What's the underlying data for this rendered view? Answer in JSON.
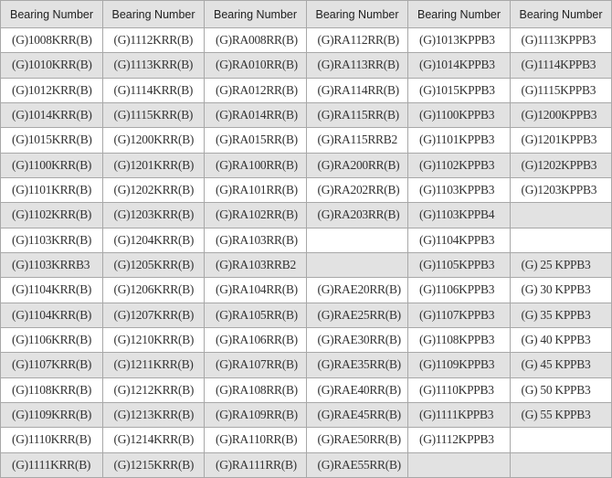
{
  "headers": [
    "Bearing Number",
    "Bearing Number",
    "Bearing Number",
    "Bearing Number",
    "Bearing Number",
    "Bearing Number"
  ],
  "rows": [
    [
      "(G)1008KRR(B)",
      "(G)1112KRR(B)",
      "(G)RA008RR(B)",
      "(G)RA112RR(B)",
      "(G)1013KPPB3",
      "(G)1113KPPB3"
    ],
    [
      "(G)1010KRR(B)",
      "(G)1113KRR(B)",
      "(G)RA010RR(B)",
      "(G)RA113RR(B)",
      "(G)1014KPPB3",
      "(G)1114KPPB3"
    ],
    [
      "(G)1012KRR(B)",
      "(G)1114KRR(B)",
      "(G)RA012RR(B)",
      "(G)RA114RR(B)",
      "(G)1015KPPB3",
      "(G)1115KPPB3"
    ],
    [
      "(G)1014KRR(B)",
      "(G)1115KRR(B)",
      "(G)RA014RR(B)",
      "(G)RA115RR(B)",
      "(G)1100KPPB3",
      "(G)1200KPPB3"
    ],
    [
      "(G)1015KRR(B)",
      "(G)1200KRR(B)",
      "(G)RA015RR(B)",
      "(G)RA115RRB2",
      "(G)1101KPPB3",
      "(G)1201KPPB3"
    ],
    [
      "(G)1100KRR(B)",
      "(G)1201KRR(B)",
      "(G)RA100RR(B)",
      "(G)RA200RR(B)",
      "(G)1102KPPB3",
      "(G)1202KPPB3"
    ],
    [
      "(G)1101KRR(B)",
      "(G)1202KRR(B)",
      "(G)RA101RR(B)",
      "(G)RA202RR(B)",
      "(G)1103KPPB3",
      "(G)1203KPPB3"
    ],
    [
      "(G)1102KRR(B)",
      "(G)1203KRR(B)",
      "(G)RA102RR(B)",
      "(G)RA203RR(B)",
      "(G)1103KPPB4",
      ""
    ],
    [
      "(G)1103KRR(B)",
      "(G)1204KRR(B)",
      "(G)RA103RR(B)",
      "",
      "(G)1104KPPB3",
      ""
    ],
    [
      "(G)1103KRRB3",
      "(G)1205KRR(B)",
      "(G)RA103RRB2",
      "",
      "(G)1105KPPB3",
      "(G) 25 KPPB3"
    ],
    [
      "(G)1104KRR(B)",
      "(G)1206KRR(B)",
      "(G)RA104RR(B)",
      "(G)RAE20RR(B)",
      "(G)1106KPPB3",
      "(G) 30 KPPB3"
    ],
    [
      "(G)1104KRR(B)",
      "(G)1207KRR(B)",
      "(G)RA105RR(B)",
      "(G)RAE25RR(B)",
      "(G)1107KPPB3",
      "(G) 35 KPPB3"
    ],
    [
      "(G)1106KRR(B)",
      "(G)1210KRR(B)",
      "(G)RA106RR(B)",
      "(G)RAE30RR(B)",
      "(G)1108KPPB3",
      "(G) 40 KPPB3"
    ],
    [
      "(G)1107KRR(B)",
      "(G)1211KRR(B)",
      "(G)RA107RR(B)",
      "(G)RAE35RR(B)",
      "(G)1109KPPB3",
      "(G) 45 KPPB3"
    ],
    [
      "(G)1108KRR(B)",
      "(G)1212KRR(B)",
      "(G)RA108RR(B)",
      "(G)RAE40RR(B)",
      "(G)1110KPPB3",
      "(G) 50 KPPB3"
    ],
    [
      "(G)1109KRR(B)",
      "(G)1213KRR(B)",
      "(G)RA109RR(B)",
      "(G)RAE45RR(B)",
      "(G)1111KPPB3",
      "(G) 55 KPPB3"
    ],
    [
      "(G)1110KRR(B)",
      "(G)1214KRR(B)",
      "(G)RA110RR(B)",
      "(G)RAE50RR(B)",
      "(G)1112KPPB3",
      ""
    ],
    [
      "(G)1111KRR(B)",
      "(G)1215KRR(B)",
      "(G)RA111RR(B)",
      "(G)RAE55RR(B)",
      "",
      ""
    ]
  ]
}
